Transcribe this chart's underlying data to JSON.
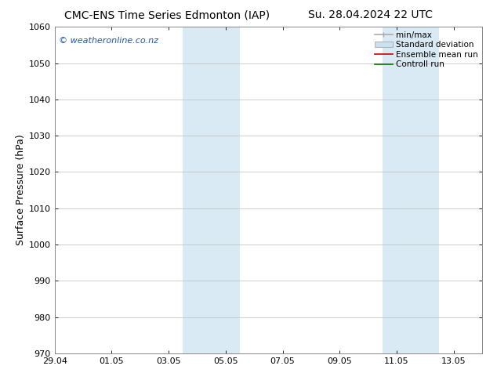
{
  "title_left": "CMC-ENS Time Series Edmonton (IAP)",
  "title_right": "Su. 28.04.2024 22 UTC",
  "ylabel": "Surface Pressure (hPa)",
  "ylim": [
    970,
    1060
  ],
  "yticks": [
    970,
    980,
    990,
    1000,
    1010,
    1020,
    1030,
    1040,
    1050,
    1060
  ],
  "xtick_labels": [
    "29.04",
    "01.05",
    "03.05",
    "05.05",
    "07.05",
    "09.05",
    "11.05",
    "13.05"
  ],
  "xtick_positions": [
    0,
    2,
    4,
    6,
    8,
    10,
    12,
    14
  ],
  "xlim": [
    0,
    15
  ],
  "shaded_bands": [
    {
      "start": 4.5,
      "end": 6.5
    },
    {
      "start": 11.5,
      "end": 13.5
    }
  ],
  "shaded_color": "#daeaf5",
  "watermark": "© weatheronline.co.nz",
  "watermark_color": "#2255aa",
  "legend_entries": [
    {
      "label": "min/max",
      "color": "#aaaaaa",
      "lw": 1.2
    },
    {
      "label": "Standard deviation",
      "color": "#cce0f0",
      "lw": 8
    },
    {
      "label": "Ensemble mean run",
      "color": "#cc0000",
      "lw": 1.2
    },
    {
      "label": "Controll run",
      "color": "#007700",
      "lw": 1.2
    }
  ],
  "background_color": "#ffffff",
  "grid_color": "#bbbbbb",
  "title_fontsize": 10,
  "ylabel_fontsize": 9,
  "tick_fontsize": 8,
  "legend_fontsize": 7.5,
  "watermark_fontsize": 8
}
